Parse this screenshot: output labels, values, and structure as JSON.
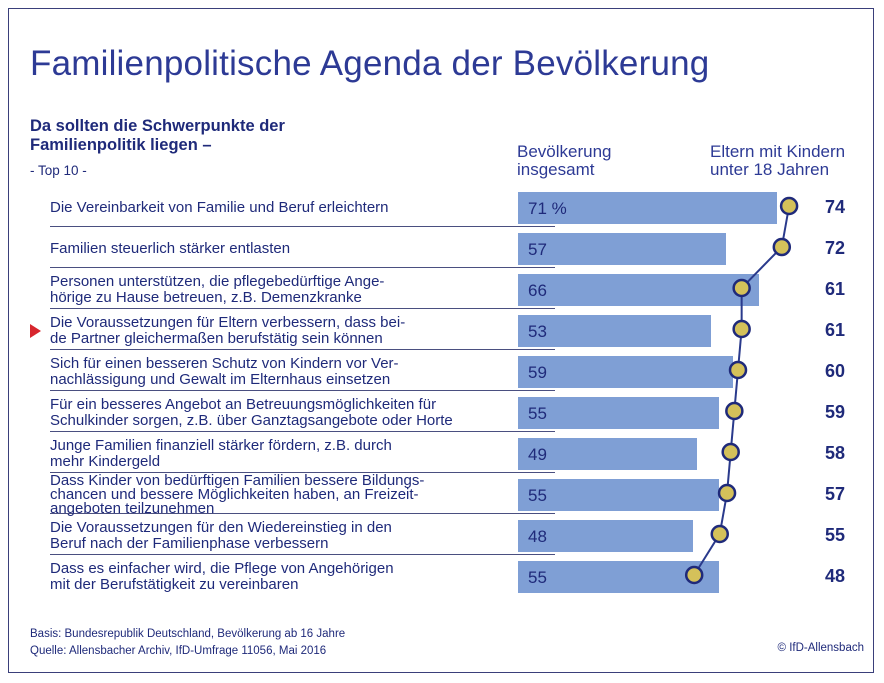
{
  "title": "Familienpolitische Agenda der Bevölkerung",
  "subtitle": "Da sollten die Schwerpunkte der Familienpolitik liegen –",
  "top_note": "- Top 10 -",
  "column_headers": {
    "population": "Bevölkerung insgesamt",
    "parents": "Eltern mit Kindern unter 18 Jahren"
  },
  "chart_data": {
    "type": "bar",
    "title": "Familienpolitische Agenda der Bevölkerung",
    "unit": "%",
    "xlim": [
      0,
      100
    ],
    "categories": [
      "Die Vereinbarkeit von Familie und Beruf erleichtern",
      "Familien steuerlich stärker entlasten",
      "Personen unterstützen, die pflegebedürftige Angehörige zu Hause betreuen, z.B. Demenzkranke",
      "Die Voraussetzungen für Eltern verbessern, dass beide Partner gleichermaßen berufstätig sein können",
      "Sich für einen besseren Schutz von Kindern vor Vernachlässigung und Gewalt im Elternhaus einsetzen",
      "Für ein besseres Angebot an Betreuungsmöglichkeiten für Schulkinder sorgen, z.B. über Ganztagsangebote oder Horte",
      "Junge Familien finanziell stärker fördern, z.B. durch mehr Kindergeld",
      "Dass Kinder von bedürftigen Familien bessere Bildungschancen und bessere Möglichkeiten haben, an Freizeitangeboten teilzunehmen",
      "Die Voraussetzungen für den Wiedereinstieg in den Beruf nach der Familienphase verbessern",
      "Dass es einfacher wird, die Pflege von Angehörigen mit der Berufstätigkeit zu vereinbaren"
    ],
    "display_labels": [
      "Die Vereinbarkeit von Familie und Beruf erleichtern",
      "Familien steuerlich stärker entlasten",
      "Personen unterstützen, die pflegebedürftige Ange-\nhörige zu Hause betreuen, z.B. Demenzkranke",
      "Die Voraussetzungen für Eltern verbessern, dass bei-\nde Partner gleichermaßen berufstätig sein können",
      "Sich für einen besseren Schutz von Kindern vor Ver-\nnachlässigung und Gewalt im Elternhaus einsetzen",
      "Für ein besseres Angebot an Betreuungsmöglichkeiten für\nSchulkinder sorgen, z.B. über Ganztagsangebote oder Horte",
      "Junge Familien finanziell stärker fördern, z.B. durch\nmehr Kindergeld",
      "Dass Kinder von bedürftigen Familien bessere Bildungs-\nchancen und bessere Möglichkeiten haben, an Freizeit-\nangeboten teilzunehmen",
      "Die Voraussetzungen für den Wiedereinstieg in den\nBeruf nach der Familienphase verbessern",
      "Dass es einfacher wird, die Pflege von Angehörigen\nmit der Berufstätigkeit zu vereinbaren"
    ],
    "highlighted_index": 3,
    "series": [
      {
        "name": "Bevölkerung insgesamt",
        "kind": "bar",
        "values": [
          71,
          57,
          66,
          53,
          59,
          55,
          49,
          55,
          48,
          55
        ],
        "first_label": "71 %"
      },
      {
        "name": "Eltern mit Kindern unter 18 Jahren",
        "kind": "line-with-markers",
        "values": [
          74,
          72,
          61,
          61,
          60,
          59,
          58,
          57,
          55,
          48
        ]
      }
    ],
    "colors": {
      "bar": "#7f9fd5",
      "line": "#2a3a8c",
      "marker_fill": "#d4c15a",
      "marker_stroke": "#1f2a7a",
      "highlight": "#d7262e"
    }
  },
  "footer": {
    "basis": "Basis: Bundesrepublik Deutschland, Bevölkerung ab 16 Jahre",
    "source": "Quelle: Allensbacher Archiv, IfD-Umfrage 11056, Mai 2016",
    "copyright": "© IfD-Allensbach"
  }
}
